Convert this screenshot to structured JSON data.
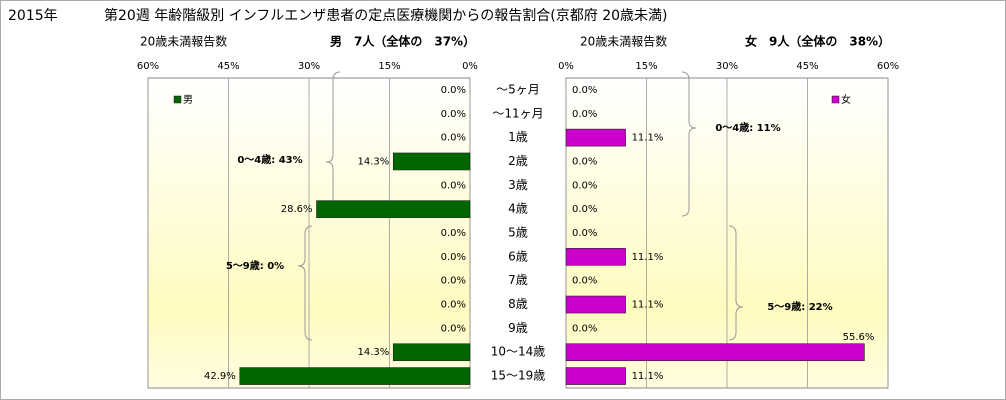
{
  "header": {
    "year": "2015年",
    "title": "第20週 年齢階級別 インフルエンザ患者の定点医療機関からの報告割合(京都府 20歳未満)"
  },
  "chart_data": [
    {
      "type": "bar",
      "orientation": "horizontal",
      "count_label": "20歳未満報告数",
      "subtitle": "男　7人（全体の　37%）",
      "categories": [
        "～5ヶ月",
        "～11ヶ月",
        "1歳",
        "2歳",
        "3歳",
        "4歳",
        "5歳",
        "6歳",
        "7歳",
        "8歳",
        "9歳",
        "10～14歳",
        "15～19歳"
      ],
      "series": [
        {
          "name": "男",
          "color": "#006600",
          "values": [
            0,
            0,
            0,
            14.3,
            0,
            28.6,
            0,
            0,
            0,
            0,
            0,
            14.3,
            42.9
          ],
          "value_labels": [
            "0.0%",
            "0.0%",
            "0.0%",
            "14.3%",
            "0.0%",
            "28.6%",
            "0.0%",
            "0.0%",
            "0.0%",
            "0.0%",
            "0.0%",
            "14.3%",
            "42.9%"
          ]
        }
      ],
      "xlim": [
        60,
        0
      ],
      "xticks": [
        {
          "value": 60,
          "label": "60%"
        },
        {
          "value": 45,
          "label": "45%"
        },
        {
          "value": 30,
          "label": "30%"
        },
        {
          "value": 15,
          "label": "15%"
        },
        {
          "value": 0,
          "label": "0%"
        }
      ],
      "grid": true,
      "legend": "top-left",
      "annotations": [
        "0～4歳: 43%",
        "5～9歳: 0%"
      ]
    },
    {
      "type": "bar",
      "orientation": "horizontal",
      "count_label": "20歳未満報告数",
      "subtitle": "女　9人（全体の　38%）",
      "series": [
        {
          "name": "女",
          "color": "#cc00cc",
          "values": [
            0,
            0,
            11.1,
            0,
            0,
            0,
            0,
            11.1,
            0,
            11.1,
            0,
            55.6,
            11.1
          ],
          "value_labels": [
            "0.0%",
            "0.0%",
            "11.1%",
            "0.0%",
            "0.0%",
            "0.0%",
            "0.0%",
            "11.1%",
            "0.0%",
            "11.1%",
            "0.0%",
            "55.6%",
            "11.1%"
          ]
        }
      ],
      "xlim": [
        0,
        60
      ],
      "xticks": [
        {
          "value": 0,
          "label": "0%"
        },
        {
          "value": 15,
          "label": "15%"
        },
        {
          "value": 30,
          "label": "30%"
        },
        {
          "value": 45,
          "label": "45%"
        },
        {
          "value": 60,
          "label": "60%"
        }
      ],
      "grid": true,
      "legend": "top-right",
      "annotations": [
        "0～4歳: 11%",
        "5～9歳: 22%"
      ]
    }
  ]
}
